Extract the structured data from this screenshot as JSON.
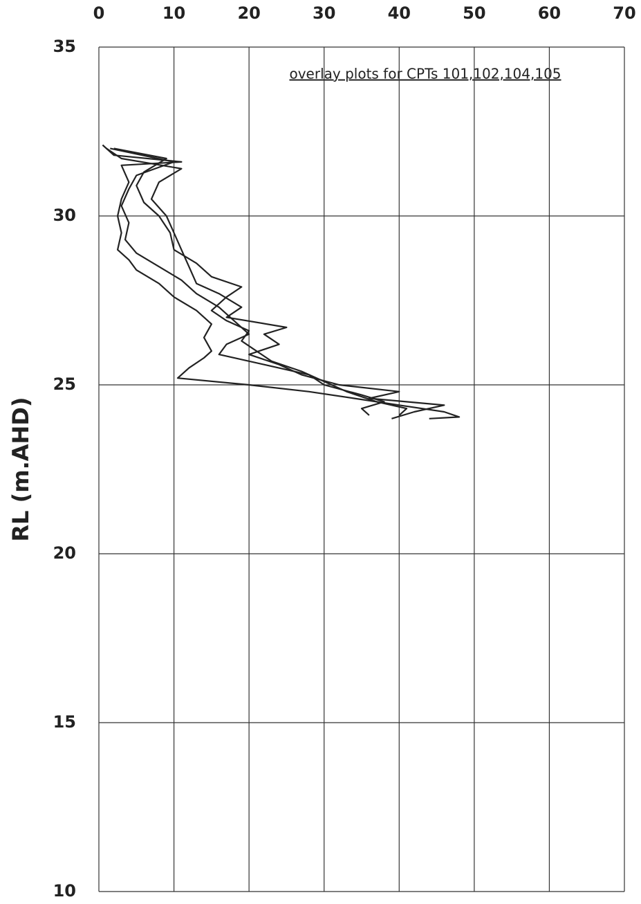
{
  "chart_data": {
    "type": "line",
    "title": "overlay plots for CPTs 101,102,104,105",
    "y_label": "RL (m.AHD)",
    "xlim": [
      0,
      70
    ],
    "xticks": [
      0,
      10,
      20,
      30,
      40,
      50,
      60,
      70
    ],
    "ylim": [
      10,
      35
    ],
    "yticks": [
      10,
      15,
      20,
      25,
      30,
      35
    ],
    "grid": true,
    "series": [
      {
        "color": "#222222",
        "x": [
          0.5,
          2,
          11,
          3,
          4,
          3,
          2.5,
          3,
          2.5,
          4,
          5,
          8,
          10,
          13,
          15,
          14,
          15,
          14,
          12,
          10.5,
          20,
          28,
          34,
          40,
          46,
          48,
          44
        ],
        "y": [
          32.1,
          31.8,
          31.6,
          31.5,
          31.0,
          30.5,
          30.0,
          29.5,
          29.0,
          28.7,
          28.4,
          28.0,
          27.6,
          27.2,
          26.8,
          26.4,
          26.0,
          25.8,
          25.5,
          25.2,
          25.0,
          24.8,
          24.6,
          24.4,
          24.2,
          24.05,
          24.0
        ]
      },
      {
        "color": "#222222",
        "x": [
          1,
          3,
          11,
          8,
          7,
          9,
          10,
          11,
          12,
          13,
          16,
          19,
          17,
          25,
          22,
          24,
          20,
          24,
          27,
          32,
          40,
          36,
          46,
          42,
          39
        ],
        "y": [
          32.0,
          31.7,
          31.4,
          31.0,
          30.5,
          30.0,
          29.5,
          29.0,
          28.5,
          28.0,
          27.7,
          27.3,
          27.0,
          26.7,
          26.5,
          26.2,
          25.9,
          25.6,
          25.3,
          25.0,
          24.8,
          24.6,
          24.4,
          24.2,
          24.0
        ]
      },
      {
        "color": "#222222",
        "x": [
          1.5,
          10,
          5,
          4,
          3,
          4,
          3.5,
          5,
          8,
          11,
          13,
          16,
          18,
          20,
          17,
          16,
          22,
          28,
          30,
          35,
          38,
          35,
          36
        ],
        "y": [
          32.0,
          31.6,
          31.2,
          30.8,
          30.3,
          29.8,
          29.3,
          28.9,
          28.5,
          28.1,
          27.7,
          27.3,
          26.9,
          26.5,
          26.2,
          25.9,
          25.6,
          25.3,
          25.0,
          24.7,
          24.5,
          24.3,
          24.1
        ]
      },
      {
        "color": "#222222",
        "x": [
          2,
          9,
          6,
          5,
          6,
          8,
          9.5,
          10,
          13,
          15,
          19,
          17,
          15,
          17,
          20,
          19,
          21,
          23,
          27,
          30,
          33,
          37,
          41,
          40
        ],
        "y": [
          32.0,
          31.7,
          31.3,
          30.9,
          30.4,
          30.0,
          29.5,
          29.0,
          28.6,
          28.2,
          27.9,
          27.6,
          27.2,
          26.9,
          26.6,
          26.3,
          26.0,
          25.7,
          25.4,
          25.1,
          24.8,
          24.5,
          24.3,
          24.1
        ]
      }
    ]
  }
}
